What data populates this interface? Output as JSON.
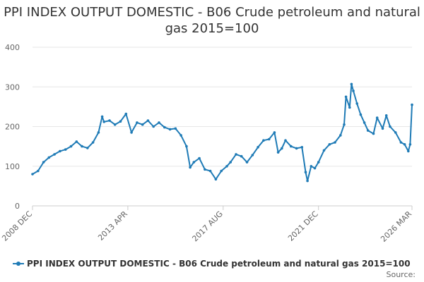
{
  "title": "PPI INDEX OUTPUT DOMESTIC - B06 Crude petroleum and natural gas 2015=100",
  "source_label": "Source:",
  "legend": {
    "series_name": "PPI INDEX OUTPUT DOMESTIC - B06 Crude petroleum and natural gas 2015=100"
  },
  "colors": {
    "series": "#1f7bb6",
    "grid": "#e6e6e6",
    "axis": "#cccccc",
    "text": "#333333"
  },
  "chart_data": {
    "type": "line",
    "title": "PPI INDEX OUTPUT DOMESTIC - B06 Crude petroleum and natural gas 2015=100",
    "xlabel": "",
    "ylabel": "",
    "ylim": [
      0,
      400
    ],
    "yticks": [
      0,
      100,
      200,
      300,
      400
    ],
    "x_start": "2008-12",
    "x_end": "2026-03",
    "xticks": [
      {
        "label": "2008 DEC",
        "date": "2008-12"
      },
      {
        "label": "2013 APR",
        "date": "2013-04"
      },
      {
        "label": "2017 AUG",
        "date": "2017-08"
      },
      {
        "label": "2021 DEC",
        "date": "2021-12"
      },
      {
        "label": "2026 MAR",
        "date": "2026-03"
      }
    ],
    "grid": true,
    "legend_position": "bottom",
    "series": [
      {
        "name": "PPI INDEX OUTPUT DOMESTIC - B06 Crude petroleum and natural gas 2015=100",
        "points": [
          [
            "2008-12",
            80
          ],
          [
            "2009-03",
            88
          ],
          [
            "2009-06",
            110
          ],
          [
            "2009-09",
            122
          ],
          [
            "2009-12",
            130
          ],
          [
            "2010-03",
            138
          ],
          [
            "2010-06",
            142
          ],
          [
            "2010-09",
            150
          ],
          [
            "2010-12",
            162
          ],
          [
            "2011-03",
            150
          ],
          [
            "2011-06",
            146
          ],
          [
            "2011-09",
            160
          ],
          [
            "2011-12",
            185
          ],
          [
            "2012-02",
            225
          ],
          [
            "2012-03",
            212
          ],
          [
            "2012-06",
            215
          ],
          [
            "2012-09",
            205
          ],
          [
            "2012-12",
            213
          ],
          [
            "2013-03",
            232
          ],
          [
            "2013-06",
            185
          ],
          [
            "2013-09",
            210
          ],
          [
            "2013-12",
            205
          ],
          [
            "2014-03",
            215
          ],
          [
            "2014-06",
            200
          ],
          [
            "2014-09",
            210
          ],
          [
            "2014-12",
            198
          ],
          [
            "2015-03",
            193
          ],
          [
            "2015-06",
            195
          ],
          [
            "2015-09",
            178
          ],
          [
            "2015-12",
            150
          ],
          [
            "2016-02",
            97
          ],
          [
            "2016-04",
            110
          ],
          [
            "2016-07",
            120
          ],
          [
            "2016-10",
            92
          ],
          [
            "2017-01",
            88
          ],
          [
            "2017-04",
            67
          ],
          [
            "2017-07",
            88
          ],
          [
            "2017-10",
            100
          ],
          [
            "2017-12",
            110
          ],
          [
            "2018-03",
            130
          ],
          [
            "2018-06",
            125
          ],
          [
            "2018-09",
            110
          ],
          [
            "2018-12",
            128
          ],
          [
            "2019-03",
            148
          ],
          [
            "2019-06",
            165
          ],
          [
            "2019-09",
            168
          ],
          [
            "2019-12",
            185
          ],
          [
            "2020-02",
            135
          ],
          [
            "2020-04",
            145
          ],
          [
            "2020-06",
            165
          ],
          [
            "2020-09",
            150
          ],
          [
            "2020-12",
            145
          ],
          [
            "2021-03",
            148
          ],
          [
            "2021-05",
            85
          ],
          [
            "2021-06",
            63
          ],
          [
            "2021-08",
            100
          ],
          [
            "2021-10",
            95
          ],
          [
            "2021-12",
            110
          ],
          [
            "2022-03",
            140
          ],
          [
            "2022-06",
            155
          ],
          [
            "2022-09",
            160
          ],
          [
            "2022-12",
            178
          ],
          [
            "2023-02",
            205
          ],
          [
            "2023-03",
            275
          ],
          [
            "2023-05",
            248
          ],
          [
            "2023-06",
            307
          ],
          [
            "2023-07",
            290
          ],
          [
            "2023-09",
            258
          ],
          [
            "2023-11",
            230
          ],
          [
            "2024-01",
            210
          ],
          [
            "2024-03",
            190
          ],
          [
            "2024-06",
            182
          ],
          [
            "2024-08",
            222
          ],
          [
            "2024-11",
            195
          ],
          [
            "2025-01",
            228
          ],
          [
            "2025-03",
            200
          ],
          [
            "2025-06",
            185
          ],
          [
            "2025-09",
            160
          ],
          [
            "2025-11",
            155
          ],
          [
            "2026-01",
            138
          ],
          [
            "2026-02",
            155
          ],
          [
            "2026-03",
            255
          ]
        ]
      }
    ]
  }
}
